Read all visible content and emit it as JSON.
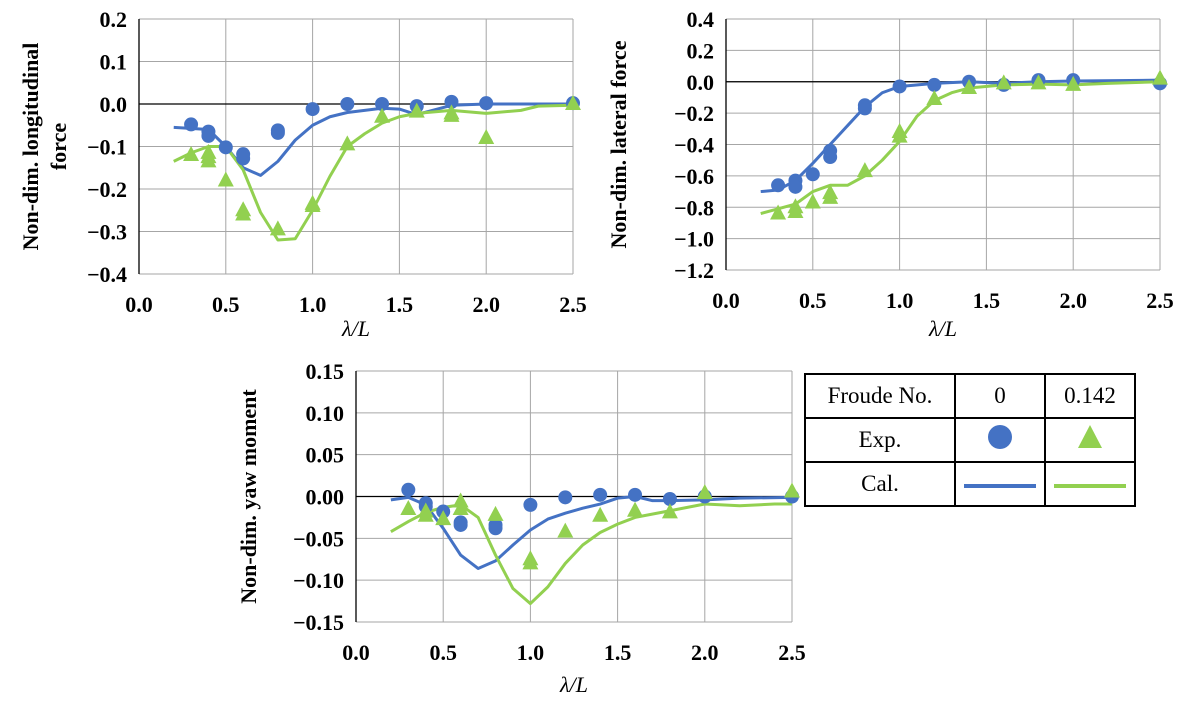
{
  "colors": {
    "froude_0": "#4472c4",
    "froude_0142": "#92d050",
    "grid": "#a6a6a6",
    "axis": "#000000"
  },
  "legend": {
    "header": [
      "Froude No.",
      "0",
      "0.142"
    ],
    "exp_label": "Exp.",
    "cal_label": "Cal.",
    "exp_markers": [
      "circle",
      "triangle"
    ],
    "cal_lines": [
      "blue-line",
      "green-line"
    ]
  },
  "chart_data": [
    {
      "id": "longitudinal",
      "type": "scatter",
      "title": "",
      "xlabel": "λ/L",
      "ylabel": [
        "Non-dim. longitudinal",
        "force"
      ],
      "xlim": [
        0,
        2.5
      ],
      "ylim": [
        -0.4,
        0.2
      ],
      "xticks": [
        0,
        0.5,
        1.0,
        1.5,
        2.0,
        2.5
      ],
      "xtick_labels": [
        "0.0",
        "0.5",
        "1.0",
        "1.5",
        "2.0",
        "2.5"
      ],
      "yticks": [
        -0.4,
        -0.3,
        -0.2,
        -0.1,
        0.0,
        0.1,
        0.2
      ],
      "ytick_labels": [
        "-0.4",
        "-0.3",
        "-0.2",
        "-0.1",
        "0.0",
        "0.1",
        "0.2"
      ],
      "grid": true,
      "series": [
        {
          "name": "Exp. Fn=0",
          "kind": "marker",
          "marker": "circle",
          "color": "#4472c4",
          "x": [
            0.3,
            0.4,
            0.4,
            0.5,
            0.6,
            0.6,
            0.8,
            0.8,
            1.0,
            1.2,
            1.4,
            1.6,
            1.8,
            2.0,
            2.5
          ],
          "y": [
            -0.048,
            -0.065,
            -0.075,
            -0.102,
            -0.118,
            -0.128,
            -0.062,
            -0.068,
            -0.012,
            0.0,
            0.0,
            -0.005,
            0.005,
            0.002,
            0.002
          ]
        },
        {
          "name": "Exp. Fn=0.142",
          "kind": "marker",
          "marker": "triangle",
          "color": "#92d050",
          "x": [
            0.3,
            0.4,
            0.4,
            0.4,
            0.5,
            0.6,
            0.6,
            0.8,
            1.0,
            1.0,
            1.2,
            1.4,
            1.6,
            1.8,
            1.8,
            2.0,
            2.5
          ],
          "y": [
            -0.12,
            -0.115,
            -0.125,
            -0.135,
            -0.18,
            -0.25,
            -0.26,
            -0.295,
            -0.235,
            -0.24,
            -0.095,
            -0.03,
            -0.018,
            -0.022,
            -0.028,
            -0.08,
            0.0
          ]
        },
        {
          "name": "Cal. Fn=0",
          "kind": "line",
          "color": "#4472c4",
          "x": [
            0.2,
            0.4,
            0.5,
            0.6,
            0.7,
            0.8,
            0.9,
            1.0,
            1.1,
            1.2,
            1.4,
            1.5,
            1.6,
            1.8,
            2.0,
            2.5
          ],
          "y": [
            -0.055,
            -0.06,
            -0.1,
            -0.15,
            -0.168,
            -0.135,
            -0.085,
            -0.05,
            -0.03,
            -0.02,
            -0.01,
            -0.012,
            -0.025,
            -0.003,
            0.0,
            0.0
          ]
        },
        {
          "name": "Cal. Fn=0.142",
          "kind": "line",
          "color": "#92d050",
          "x": [
            0.2,
            0.3,
            0.4,
            0.5,
            0.6,
            0.7,
            0.8,
            0.9,
            1.0,
            1.1,
            1.2,
            1.3,
            1.4,
            1.5,
            1.6,
            1.8,
            2.0,
            2.2,
            2.3,
            2.5
          ],
          "y": [
            -0.135,
            -0.115,
            -0.1,
            -0.1,
            -0.155,
            -0.255,
            -0.32,
            -0.317,
            -0.25,
            -0.17,
            -0.1,
            -0.07,
            -0.045,
            -0.03,
            -0.022,
            -0.015,
            -0.022,
            -0.015,
            -0.005,
            -0.003
          ]
        }
      ]
    },
    {
      "id": "lateral",
      "type": "scatter",
      "title": "",
      "xlabel": "λ/L",
      "ylabel": [
        "Non-dim. lateral force"
      ],
      "xlim": [
        0,
        2.5
      ],
      "ylim": [
        -1.2,
        0.4
      ],
      "xticks": [
        0,
        0.5,
        1.0,
        1.5,
        2.0,
        2.5
      ],
      "xtick_labels": [
        "0.0",
        "0.5",
        "1.0",
        "1.5",
        "2.0",
        "2.5"
      ],
      "yticks": [
        -1.2,
        -1.0,
        -0.8,
        -0.6,
        -0.4,
        -0.2,
        0.0,
        0.2,
        0.4
      ],
      "ytick_labels": [
        "-1.2",
        "-1.0",
        "-0.8",
        "-0.6",
        "-0.4",
        "-0.2",
        "0.0",
        "0.2",
        "0.4"
      ],
      "grid": true,
      "series": [
        {
          "name": "Exp. Fn=0",
          "kind": "marker",
          "marker": "circle",
          "color": "#4472c4",
          "x": [
            0.3,
            0.4,
            0.4,
            0.5,
            0.6,
            0.6,
            0.8,
            0.8,
            1.0,
            1.2,
            1.4,
            1.6,
            1.8,
            2.0,
            2.5
          ],
          "y": [
            -0.66,
            -0.63,
            -0.67,
            -0.59,
            -0.44,
            -0.48,
            -0.15,
            -0.17,
            -0.03,
            -0.02,
            0.0,
            -0.02,
            0.01,
            0.01,
            -0.01
          ]
        },
        {
          "name": "Exp. Fn=0.142",
          "kind": "marker",
          "marker": "triangle",
          "color": "#92d050",
          "x": [
            0.3,
            0.4,
            0.4,
            0.5,
            0.6,
            0.6,
            0.8,
            1.0,
            1.0,
            1.2,
            1.4,
            1.6,
            1.8,
            2.0,
            2.5
          ],
          "y": [
            -0.84,
            -0.8,
            -0.83,
            -0.77,
            -0.71,
            -0.74,
            -0.57,
            -0.32,
            -0.35,
            -0.11,
            -0.04,
            -0.01,
            -0.01,
            -0.02,
            0.02
          ]
        },
        {
          "name": "Cal. Fn=0",
          "kind": "line",
          "color": "#4472c4",
          "x": [
            0.2,
            0.3,
            0.4,
            0.5,
            0.6,
            0.7,
            0.8,
            0.9,
            1.0,
            1.2,
            1.4,
            1.6,
            1.8,
            2.0,
            2.5
          ],
          "y": [
            -0.7,
            -0.69,
            -0.63,
            -0.52,
            -0.4,
            -0.28,
            -0.16,
            -0.07,
            -0.03,
            -0.01,
            0.0,
            -0.01,
            0.0,
            0.005,
            0.01
          ]
        },
        {
          "name": "Cal. Fn=0.142",
          "kind": "line",
          "color": "#92d050",
          "x": [
            0.2,
            0.3,
            0.4,
            0.5,
            0.6,
            0.7,
            0.8,
            0.9,
            1.0,
            1.1,
            1.2,
            1.3,
            1.4,
            1.6,
            1.8,
            2.0,
            2.2,
            2.5
          ],
          "y": [
            -0.84,
            -0.81,
            -0.78,
            -0.7,
            -0.66,
            -0.66,
            -0.6,
            -0.5,
            -0.38,
            -0.22,
            -0.12,
            -0.07,
            -0.04,
            -0.02,
            -0.015,
            -0.02,
            -0.01,
            0.0
          ]
        }
      ]
    },
    {
      "id": "yaw",
      "type": "scatter",
      "title": "",
      "xlabel": "λ/L",
      "ylabel": [
        "Non-dim. yaw moment"
      ],
      "xlim": [
        0,
        2.5
      ],
      "ylim": [
        -0.15,
        0.15
      ],
      "xticks": [
        0,
        0.5,
        1.0,
        1.5,
        2.0,
        2.5
      ],
      "xtick_labels": [
        "0.0",
        "0.5",
        "1.0",
        "1.5",
        "2.0",
        "2.5"
      ],
      "yticks": [
        -0.15,
        -0.1,
        -0.05,
        0.0,
        0.05,
        0.1,
        0.15
      ],
      "ytick_labels": [
        "-0.15",
        "-0.10",
        "-0.05",
        "0.00",
        "0.05",
        "0.10",
        "0.15"
      ],
      "grid": true,
      "series": [
        {
          "name": "Exp. Fn=0",
          "kind": "marker",
          "marker": "circle",
          "color": "#4472c4",
          "x": [
            0.3,
            0.4,
            0.4,
            0.5,
            0.6,
            0.6,
            0.8,
            0.8,
            1.0,
            1.2,
            1.4,
            1.6,
            1.8,
            2.0,
            2.5
          ],
          "y": [
            0.008,
            -0.008,
            -0.012,
            -0.018,
            -0.031,
            -0.034,
            -0.034,
            -0.038,
            -0.01,
            -0.001,
            0.002,
            0.002,
            -0.003,
            0.0,
            0.0
          ]
        },
        {
          "name": "Exp. Fn=0.142",
          "kind": "marker",
          "marker": "triangle",
          "color": "#92d050",
          "x": [
            0.3,
            0.4,
            0.4,
            0.5,
            0.6,
            0.6,
            0.8,
            1.0,
            1.0,
            1.2,
            1.4,
            1.6,
            1.8,
            2.0,
            2.5
          ],
          "y": [
            -0.015,
            -0.018,
            -0.023,
            -0.027,
            -0.006,
            -0.015,
            -0.022,
            -0.075,
            -0.08,
            -0.042,
            -0.023,
            -0.017,
            -0.019,
            0.004,
            0.006
          ]
        },
        {
          "name": "Cal. Fn=0",
          "kind": "line",
          "color": "#4472c4",
          "x": [
            0.2,
            0.3,
            0.4,
            0.5,
            0.6,
            0.7,
            0.8,
            0.9,
            1.0,
            1.1,
            1.2,
            1.3,
            1.4,
            1.5,
            1.6,
            1.7,
            1.8,
            2.0,
            2.2,
            2.5
          ],
          "y": [
            -0.004,
            -0.001,
            -0.01,
            -0.038,
            -0.07,
            -0.086,
            -0.077,
            -0.058,
            -0.04,
            -0.027,
            -0.02,
            -0.014,
            -0.009,
            -0.002,
            0.0,
            -0.005,
            -0.005,
            -0.004,
            -0.002,
            -0.001
          ]
        },
        {
          "name": "Cal. Fn=0.142",
          "kind": "line",
          "color": "#92d050",
          "x": [
            0.2,
            0.3,
            0.4,
            0.5,
            0.6,
            0.7,
            0.8,
            0.9,
            1.0,
            1.1,
            1.2,
            1.3,
            1.4,
            1.5,
            1.6,
            1.8,
            2.0,
            2.2,
            2.4,
            2.5
          ],
          "y": [
            -0.042,
            -0.03,
            -0.019,
            -0.013,
            -0.01,
            -0.025,
            -0.07,
            -0.11,
            -0.128,
            -0.108,
            -0.08,
            -0.058,
            -0.043,
            -0.033,
            -0.025,
            -0.017,
            -0.009,
            -0.011,
            -0.009,
            -0.009
          ]
        }
      ]
    }
  ]
}
